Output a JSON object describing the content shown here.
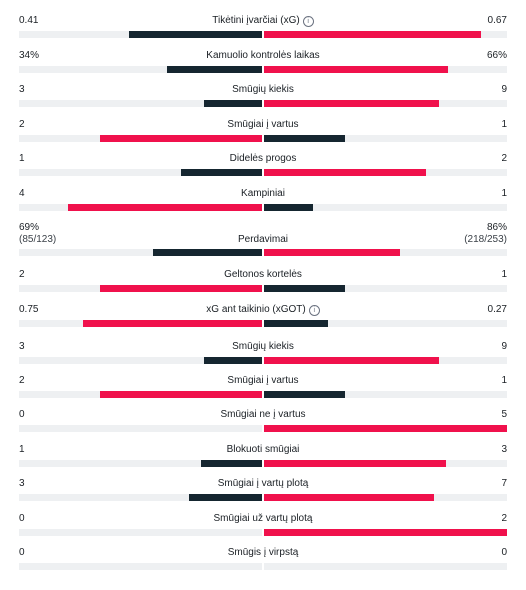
{
  "colors": {
    "home_bar": "#152630",
    "away_bar": "#f0114c",
    "track": "#eef0f2"
  },
  "stats": [
    {
      "label": "Tikėtini įvarčiai (xG)",
      "info": true,
      "left": "0.41",
      "right": "0.67",
      "home": 0.41,
      "away": 0.67,
      "max": 0.75
    },
    {
      "label": "Kamuolio kontrolės laikas",
      "left": "34%",
      "right": "66%",
      "home": 34,
      "away": 66,
      "max": 87
    },
    {
      "label": "Smūgių kiekis",
      "left": "3",
      "right": "9",
      "home": 3,
      "away": 9,
      "max": 12.5
    },
    {
      "label": "Smūgiai į vartus",
      "left": "2",
      "right": "1",
      "home": 2,
      "away": 1,
      "max": 3
    },
    {
      "label": "Didelės progos",
      "left": "1",
      "right": "2",
      "home": 1,
      "away": 2,
      "max": 3
    },
    {
      "label": "Kampiniai",
      "left": "4",
      "right": "1",
      "home": 4,
      "away": 1,
      "max": 5
    },
    {
      "label": "Perdavimai",
      "left": "69%",
      "right": "86%",
      "left_sub": "(85/123)",
      "right_sub": "(218/253)",
      "home": 69,
      "away": 86,
      "max": 154
    },
    {
      "label": "Geltonos kortelės",
      "left": "2",
      "right": "1",
      "home": 2,
      "away": 1,
      "max": 3
    },
    {
      "label": "xG ant taikinio (xGOT)",
      "info": true,
      "left": "0.75",
      "right": "0.27",
      "home": 0.75,
      "away": 0.27,
      "max": 1.02
    },
    {
      "label": "Smūgių kiekis",
      "left": "3",
      "right": "9",
      "home": 3,
      "away": 9,
      "max": 12.5
    },
    {
      "label": "Smūgiai į vartus",
      "left": "2",
      "right": "1",
      "home": 2,
      "away": 1,
      "max": 3
    },
    {
      "label": "Smūgiai ne į vartus",
      "left": "0",
      "right": "5",
      "home": 0,
      "away": 5,
      "max": 5
    },
    {
      "label": "Blokuoti smūgiai",
      "left": "1",
      "right": "3",
      "home": 1,
      "away": 3,
      "max": 4
    },
    {
      "label": "Smūgiai į vartų plotą",
      "left": "3",
      "right": "7",
      "home": 3,
      "away": 7,
      "max": 10
    },
    {
      "label": "Smūgiai už vartų plotą",
      "left": "0",
      "right": "2",
      "home": 0,
      "away": 2,
      "max": 2
    },
    {
      "label": "Smūgis į virpstą",
      "left": "0",
      "right": "0",
      "home": 0,
      "away": 0,
      "max": 1
    }
  ]
}
